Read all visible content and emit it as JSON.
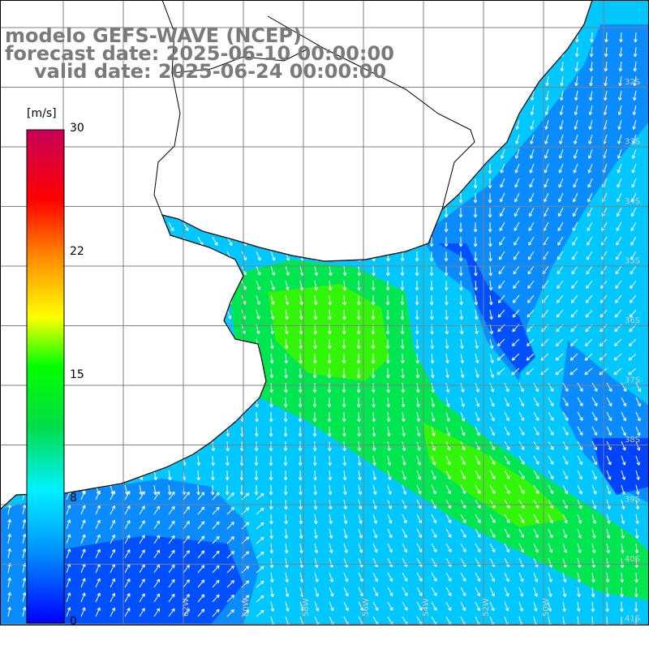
{
  "title": {
    "line1": "modelo GEFS-WAVE (NCEP)",
    "line2": "forecast date: 2025-06-10 00:00:00",
    "line3": "valid date: 2025-06-24 00:00:00"
  },
  "colorbar": {
    "unit": "[m/s]",
    "ticks": [
      "30",
      "22",
      "15",
      "8",
      "0"
    ],
    "tick_values": [
      30,
      22,
      15,
      8,
      0
    ],
    "range": [
      0,
      30
    ],
    "colors": [
      "#0000ff",
      "#0096ff",
      "#00f0ff",
      "#00dc46",
      "#00ff00",
      "#ffff00",
      "#ff8c00",
      "#ff0000",
      "#c8005a"
    ]
  },
  "map": {
    "lat_labels": [
      "32S",
      "33S",
      "34S",
      "35S",
      "36S",
      "37S",
      "38S",
      "39S",
      "40S",
      "41S"
    ],
    "lon_labels": [
      "62W",
      "60W",
      "58W",
      "56W",
      "54W",
      "52W",
      "50W"
    ],
    "land_color": "#ffffff",
    "grid_color": "#808080"
  }
}
